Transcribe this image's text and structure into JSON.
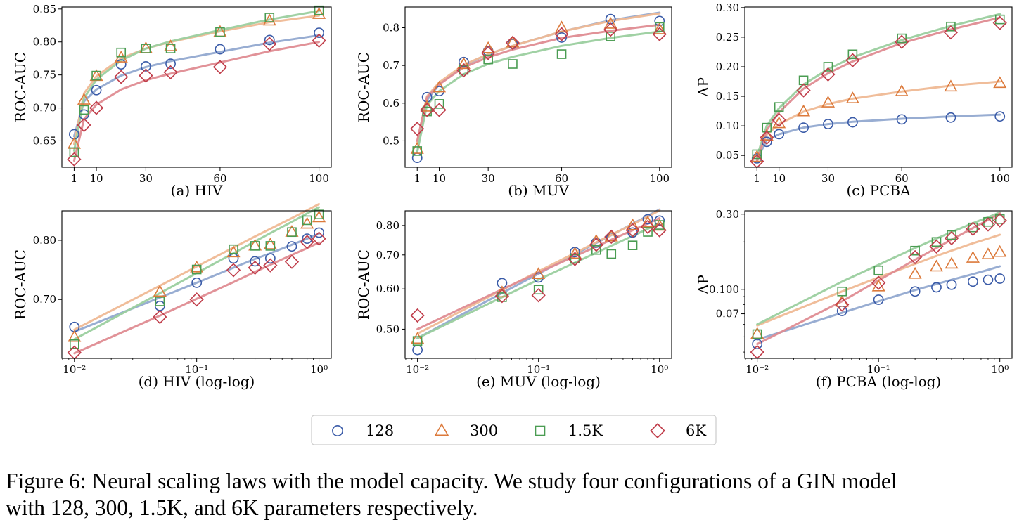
{
  "figure": {
    "caption_line1": "Figure 6: Neural scaling laws with the model capacity. We study four configurations of a GIN model",
    "caption_line2": "with 128, 300, 1.5K, and 6K parameters respectively."
  },
  "series_styles": [
    {
      "name": "128",
      "color": "#3a5ba8",
      "fit_color": "#92a9d0",
      "marker": "circle"
    },
    {
      "name": "300",
      "color": "#dc7a3b",
      "fit_color": "#efb995",
      "marker": "triangle"
    },
    {
      "name": "1.5K",
      "color": "#4a9c52",
      "fit_color": "#9bcf9f",
      "marker": "square"
    },
    {
      "name": "6K",
      "color": "#c03d4a",
      "fit_color": "#df8c92",
      "marker": "diamond"
    }
  ],
  "legend": {
    "placement": "bottom-center",
    "entries": [
      "128",
      "300",
      "1.5K",
      "6K"
    ]
  },
  "chart_data": [
    {
      "type": "scatter",
      "title": "(a) HIV",
      "ylabel": "ROC-AUC",
      "xscale": "linear",
      "yscale": "linear",
      "xlim": [
        -3.95,
        104.95
      ],
      "ylim": [
        0.61,
        0.853
      ],
      "xticks": [
        1,
        10,
        30,
        60,
        100
      ],
      "xtick_labels": [
        "1",
        "10",
        "30",
        "60",
        "100"
      ],
      "yticks": [
        0.65,
        0.7,
        0.75,
        0.8,
        0.85
      ],
      "ytick_labels": [
        "0.65",
        "0.70",
        "0.75",
        "0.80",
        "0.85"
      ],
      "x": [
        1,
        5,
        10,
        20,
        30,
        40,
        60,
        80,
        100
      ],
      "series": [
        {
          "name": "128",
          "values": [
            0.66,
            0.69,
            0.727,
            0.766,
            0.763,
            0.767,
            0.789,
            0.803,
            0.814
          ],
          "fit": [
            0.657,
            0.71,
            0.728,
            0.749,
            0.762,
            0.771,
            0.785,
            0.799,
            0.81
          ]
        },
        {
          "name": "300",
          "values": [
            0.645,
            0.712,
            0.748,
            0.776,
            0.79,
            0.793,
            0.815,
            0.832,
            0.842
          ],
          "fit": [
            0.645,
            0.722,
            0.748,
            0.775,
            0.79,
            0.8,
            0.816,
            0.83,
            0.84
          ]
        },
        {
          "name": "1.5K",
          "values": [
            0.633,
            0.697,
            0.749,
            0.784,
            0.79,
            0.79,
            0.815,
            0.837,
            0.848
          ],
          "fit": [
            0.635,
            0.715,
            0.743,
            0.772,
            0.79,
            0.801,
            0.818,
            0.834,
            0.847
          ]
        },
        {
          "name": "6K",
          "values": [
            0.622,
            0.674,
            0.7,
            0.747,
            0.749,
            0.754,
            0.762,
            0.797,
            0.802
          ],
          "fit": [
            0.62,
            0.683,
            0.705,
            0.728,
            0.742,
            0.752,
            0.769,
            0.786,
            0.8
          ]
        }
      ]
    },
    {
      "type": "scatter",
      "title": "(b) MUV",
      "ylabel": "ROC-AUC",
      "xscale": "linear",
      "yscale": "linear",
      "xlim": [
        -3.95,
        104.95
      ],
      "ylim": [
        0.43,
        0.855
      ],
      "xticks": [
        1,
        10,
        30,
        60,
        100
      ],
      "xtick_labels": [
        "1",
        "10",
        "30",
        "60",
        "100"
      ],
      "yticks": [
        0.5,
        0.6,
        0.7,
        0.8
      ],
      "ytick_labels": [
        "0.5",
        "0.6",
        "0.7",
        "0.8"
      ],
      "x": [
        1,
        5,
        10,
        20,
        30,
        40,
        60,
        80,
        100
      ],
      "series": [
        {
          "name": "128",
          "values": [
            0.455,
            0.616,
            0.632,
            0.709,
            0.738,
            0.757,
            0.774,
            0.823,
            0.818
          ],
          "fit": [
            0.47,
            0.608,
            0.65,
            0.7,
            0.73,
            0.752,
            0.79,
            0.82,
            0.84
          ]
        },
        {
          "name": "300",
          "values": [
            0.478,
            0.59,
            0.641,
            0.703,
            0.745,
            0.76,
            0.8,
            0.81,
            0.795
          ],
          "fit": [
            0.495,
            0.618,
            0.655,
            0.702,
            0.73,
            0.752,
            0.79,
            0.818,
            0.838
          ]
        },
        {
          "name": "1.5K",
          "values": [
            0.473,
            0.578,
            0.598,
            0.688,
            0.716,
            0.704,
            0.73,
            0.777,
            0.802
          ],
          "fit": [
            0.47,
            0.595,
            0.632,
            0.677,
            0.704,
            0.723,
            0.752,
            0.773,
            0.79
          ]
        },
        {
          "name": "6K",
          "values": [
            0.532,
            0.582,
            0.582,
            0.687,
            0.733,
            0.76,
            0.783,
            0.795,
            0.783
          ],
          "fit": [
            0.5,
            0.615,
            0.65,
            0.695,
            0.722,
            0.742,
            0.773,
            0.792,
            0.808
          ]
        }
      ]
    },
    {
      "type": "scatter",
      "title": "(c) PCBA",
      "ylabel": "AP",
      "xscale": "linear",
      "yscale": "linear",
      "xlim": [
        -3.95,
        104.95
      ],
      "ylim": [
        0.03,
        0.301
      ],
      "xticks": [
        1,
        10,
        30,
        60,
        100
      ],
      "xtick_labels": [
        "1",
        "10",
        "30",
        "60",
        "100"
      ],
      "yticks": [
        0.05,
        0.1,
        0.15,
        0.2,
        0.25,
        0.3
      ],
      "ytick_labels": [
        "0.05",
        "0.10",
        "0.15",
        "0.20",
        "0.25",
        "0.30"
      ],
      "x": [
        1,
        5,
        10,
        20,
        30,
        40,
        60,
        80,
        100
      ],
      "series": [
        {
          "name": "128",
          "values": [
            0.045,
            0.073,
            0.086,
            0.097,
            0.103,
            0.106,
            0.111,
            0.114,
            0.116
          ],
          "fit": [
            0.043,
            0.076,
            0.086,
            0.097,
            0.103,
            0.107,
            0.112,
            0.116,
            0.119
          ]
        },
        {
          "name": "300",
          "values": [
            0.047,
            0.083,
            0.104,
            0.124,
            0.139,
            0.146,
            0.158,
            0.166,
            0.172
          ],
          "fit": [
            0.045,
            0.085,
            0.103,
            0.124,
            0.137,
            0.146,
            0.158,
            0.168,
            0.175
          ]
        },
        {
          "name": "1.5K",
          "values": [
            0.052,
            0.097,
            0.132,
            0.177,
            0.2,
            0.221,
            0.248,
            0.268,
            0.28
          ],
          "fit": [
            0.048,
            0.1,
            0.13,
            0.17,
            0.196,
            0.216,
            0.245,
            0.269,
            0.289
          ]
        },
        {
          "name": "6K",
          "values": [
            0.04,
            0.08,
            0.11,
            0.16,
            0.187,
            0.211,
            0.242,
            0.258,
            0.274
          ],
          "fit": [
            0.04,
            0.093,
            0.123,
            0.163,
            0.189,
            0.209,
            0.24,
            0.263,
            0.283
          ]
        }
      ]
    },
    {
      "type": "scatter",
      "title": "(d) HIV (log-log)",
      "ylabel": "ROC-AUC",
      "xscale": "log",
      "yscale": "log",
      "xlim": [
        0.0079,
        1.26
      ],
      "ylim": [
        0.613,
        0.855
      ],
      "xticks": [
        0.01,
        0.1,
        1
      ],
      "xtick_labels": [
        "10⁻²",
        "10⁻¹",
        "10⁰"
      ],
      "yticks": [
        0.7,
        0.8
      ],
      "ytick_labels": [
        "0.70",
        "0.80"
      ],
      "x": [
        0.01,
        0.05,
        0.1,
        0.2,
        0.3,
        0.4,
        0.6,
        0.8,
        1.0
      ],
      "series": [
        {
          "name": "128",
          "values": [
            0.658,
            0.69,
            0.727,
            0.768,
            0.763,
            0.768,
            0.789,
            0.803,
            0.814
          ],
          "fit": [
            0.651,
            0.703,
            0.727,
            0.752,
            0.767,
            0.777,
            0.792,
            0.803,
            0.812
          ]
        },
        {
          "name": "300",
          "values": [
            0.643,
            0.712,
            0.752,
            0.778,
            0.79,
            0.792,
            0.815,
            0.83,
            0.842
          ],
          "fit": [
            0.654,
            0.722,
            0.754,
            0.787,
            0.807,
            0.821,
            0.841,
            0.856,
            0.868
          ]
        },
        {
          "name": "1.5K",
          "values": [
            0.633,
            0.697,
            0.749,
            0.784,
            0.79,
            0.79,
            0.815,
            0.837,
            0.848
          ],
          "fit": [
            0.64,
            0.71,
            0.743,
            0.777,
            0.798,
            0.813,
            0.834,
            0.85,
            0.862
          ]
        },
        {
          "name": "6K",
          "values": [
            0.621,
            0.673,
            0.7,
            0.748,
            0.752,
            0.756,
            0.762,
            0.797,
            0.803
          ],
          "fit": [
            0.62,
            0.675,
            0.701,
            0.728,
            0.745,
            0.757,
            0.774,
            0.786,
            0.796
          ]
        }
      ]
    },
    {
      "type": "scatter",
      "title": "(e) MUV (log-log)",
      "ylabel": "ROC-AUC",
      "xscale": "log",
      "yscale": "log",
      "xlim": [
        0.0079,
        1.26
      ],
      "ylim": [
        0.438,
        0.855
      ],
      "xticks": [
        0.01,
        0.1,
        1
      ],
      "xtick_labels": [
        "10⁻²",
        "10⁻¹",
        "10⁰"
      ],
      "yticks": [
        0.5,
        0.6,
        0.7,
        0.8
      ],
      "ytick_labels": [
        "0.50",
        "0.60",
        "0.70",
        "0.80"
      ],
      "x": [
        0.01,
        0.05,
        0.1,
        0.2,
        0.3,
        0.4,
        0.6,
        0.8,
        1.0
      ],
      "series": [
        {
          "name": "128",
          "values": [
            0.455,
            0.616,
            0.632,
            0.709,
            0.74,
            0.757,
            0.775,
            0.823,
            0.818
          ],
          "fit": [
            0.48,
            0.589,
            0.643,
            0.702,
            0.739,
            0.766,
            0.806,
            0.836,
            0.86
          ]
        },
        {
          "name": "300",
          "values": [
            0.478,
            0.59,
            0.641,
            0.703,
            0.745,
            0.76,
            0.8,
            0.81,
            0.798
          ],
          "fit": [
            0.49,
            0.597,
            0.65,
            0.706,
            0.741,
            0.767,
            0.804,
            0.833,
            0.856
          ]
        },
        {
          "name": "1.5K",
          "values": [
            0.474,
            0.578,
            0.598,
            0.688,
            0.716,
            0.703,
            0.731,
            0.777,
            0.802
          ],
          "fit": [
            0.48,
            0.578,
            0.626,
            0.676,
            0.707,
            0.73,
            0.763,
            0.788,
            0.808
          ]
        },
        {
          "name": "6K",
          "values": [
            0.532,
            0.581,
            0.583,
            0.687,
            0.733,
            0.76,
            0.783,
            0.795,
            0.783
          ],
          "fit": [
            0.5,
            0.599,
            0.646,
            0.696,
            0.727,
            0.75,
            0.783,
            0.807,
            0.827
          ]
        }
      ]
    },
    {
      "type": "scatter",
      "title": "(f) PCBA (log-log)",
      "ylabel": "AP",
      "xscale": "log",
      "yscale": "log",
      "xlim": [
        0.0079,
        1.26
      ],
      "ylim": [
        0.0365,
        0.315
      ],
      "xticks": [
        0.01,
        0.1,
        1
      ],
      "xtick_labels": [
        "10⁻²",
        "10⁻¹",
        "10⁰"
      ],
      "yticks": [
        0.07,
        0.1,
        0.3
      ],
      "ytick_labels": [
        "0.07",
        "0.100",
        "0.30"
      ],
      "x": [
        0.01,
        0.05,
        0.1,
        0.2,
        0.3,
        0.4,
        0.6,
        0.8,
        1.0
      ],
      "series": [
        {
          "name": "128",
          "values": [
            0.045,
            0.073,
            0.086,
            0.097,
            0.103,
            0.107,
            0.112,
            0.115,
            0.117
          ],
          "fit": [
            0.048,
            0.071,
            0.084,
            0.099,
            0.108,
            0.115,
            0.125,
            0.133,
            0.14
          ]
        },
        {
          "name": "300",
          "values": [
            0.052,
            0.083,
            0.104,
            0.125,
            0.139,
            0.145,
            0.158,
            0.166,
            0.172
          ],
          "fit": [
            0.059,
            0.097,
            0.119,
            0.145,
            0.163,
            0.176,
            0.196,
            0.21,
            0.222
          ]
        },
        {
          "name": "1.5K",
          "values": [
            0.052,
            0.097,
            0.132,
            0.176,
            0.2,
            0.221,
            0.247,
            0.268,
            0.279
          ],
          "fit": [
            0.06,
            0.112,
            0.143,
            0.183,
            0.21,
            0.231,
            0.263,
            0.287,
            0.308
          ]
        },
        {
          "name": "6K",
          "values": [
            0.04,
            0.08,
            0.11,
            0.16,
            0.187,
            0.211,
            0.242,
            0.258,
            0.274
          ],
          "fit": [
            0.045,
            0.084,
            0.114,
            0.154,
            0.183,
            0.207,
            0.245,
            0.276,
            0.303
          ]
        }
      ]
    }
  ]
}
